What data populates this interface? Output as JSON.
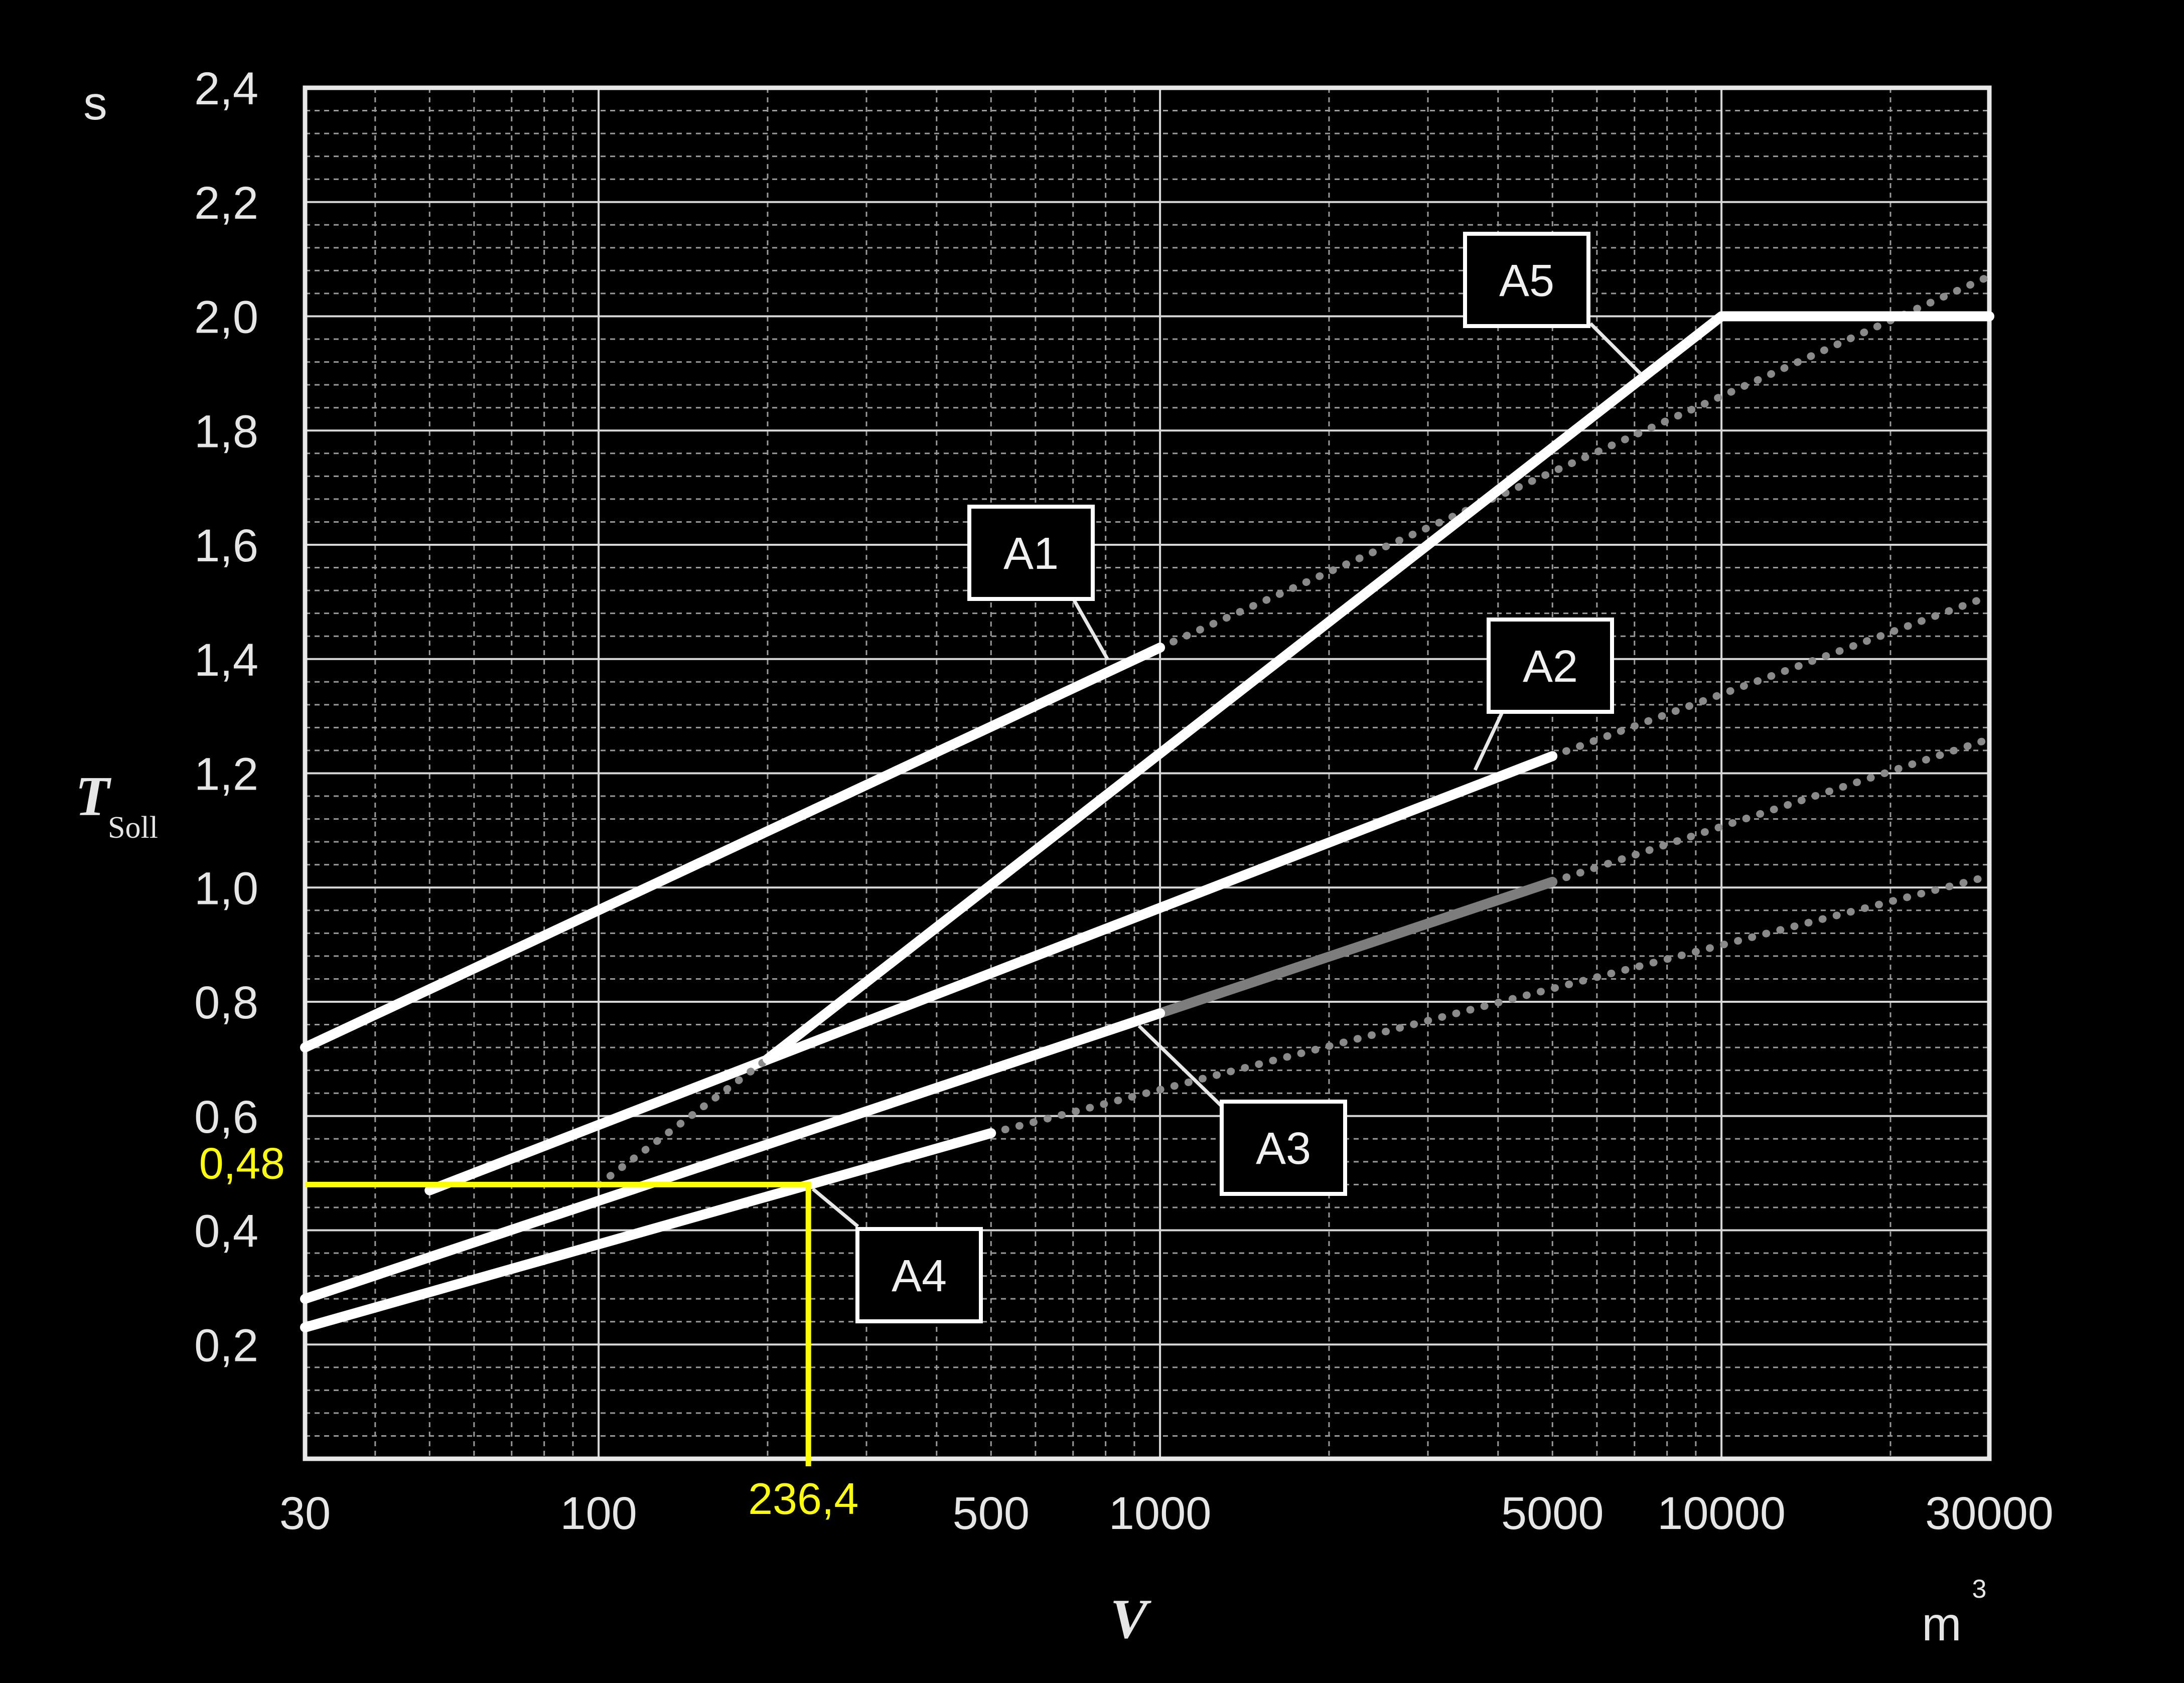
{
  "chart_data": {
    "type": "line",
    "x_scale": "log",
    "xlim": [
      30,
      30000
    ],
    "ylim": [
      0,
      2.4
    ],
    "x_ticks": [
      {
        "value": 30,
        "label": "30"
      },
      {
        "value": 100,
        "label": "100"
      },
      {
        "value": 500,
        "label": "500"
      },
      {
        "value": 1000,
        "label": "1000"
      },
      {
        "value": 5000,
        "label": "5000"
      },
      {
        "value": 10000,
        "label": "10000"
      },
      {
        "value": 30000,
        "label": "30000"
      }
    ],
    "y_ticks": [
      {
        "value": 0.2,
        "label": "0,2"
      },
      {
        "value": 0.4,
        "label": "0,4"
      },
      {
        "value": 0.6,
        "label": "0,6"
      },
      {
        "value": 0.8,
        "label": "0,8"
      },
      {
        "value": 1.0,
        "label": "1,0"
      },
      {
        "value": 1.2,
        "label": "1,2"
      },
      {
        "value": 1.4,
        "label": "1,4"
      },
      {
        "value": 1.6,
        "label": "1,6"
      },
      {
        "value": 1.8,
        "label": "1,8"
      },
      {
        "value": 2.0,
        "label": "2,0"
      },
      {
        "value": 2.2,
        "label": "2,2"
      },
      {
        "value": 2.4,
        "label": "2,4"
      }
    ],
    "y_unit": "s",
    "y_label_main": "T",
    "y_label_sub": "Soll",
    "x_label": "V",
    "x_unit_base": "m",
    "x_unit_sup": "3",
    "grid": true,
    "series": [
      {
        "name": "A1",
        "solid": [
          [
            30,
            0.72
          ],
          [
            1000,
            1.42
          ]
        ],
        "dotted": [
          [
            1000,
            1.42
          ],
          [
            30000,
            2.07
          ]
        ]
      },
      {
        "name": "A2",
        "solid": [
          [
            50,
            0.47
          ],
          [
            5000,
            1.23
          ]
        ],
        "dotted": [
          [
            5000,
            1.23
          ],
          [
            30000,
            1.51
          ]
        ]
      },
      {
        "name": "A3",
        "solid": [
          [
            30,
            0.28
          ],
          [
            1000,
            0.78
          ]
        ],
        "grey": [
          [
            1000,
            0.78
          ],
          [
            5000,
            1.01
          ]
        ],
        "dotted": [
          [
            5000,
            1.01
          ],
          [
            30000,
            1.26
          ]
        ]
      },
      {
        "name": "A4",
        "solid": [
          [
            30,
            0.23
          ],
          [
            500,
            0.57
          ]
        ],
        "dotted": [
          [
            500,
            0.57
          ],
          [
            30000,
            1.02
          ]
        ]
      },
      {
        "name": "A5",
        "solid": [
          [
            200,
            0.7
          ],
          [
            10000,
            2.0
          ],
          [
            30000,
            2.0
          ]
        ],
        "dotted": [
          [
            100,
            0.48
          ],
          [
            200,
            0.7
          ]
        ]
      }
    ],
    "highlight": {
      "x": 236.4,
      "y": 0.48,
      "x_label": "236,4",
      "y_label": "0,48",
      "color": "#ffff00"
    }
  },
  "callouts": [
    {
      "text": "A1",
      "series": "A1",
      "anchor": [
        1000,
        1.42
      ]
    },
    {
      "text": "A2",
      "series": "A2",
      "anchor": [
        5000,
        1.23
      ]
    },
    {
      "text": "A3",
      "series": "A3",
      "anchor": [
        1000,
        0.78
      ]
    },
    {
      "text": "A4",
      "series": "A4",
      "anchor": [
        236.4,
        0.48
      ]
    },
    {
      "text": "A5",
      "series": "A5",
      "anchor": [
        10000,
        2.0
      ]
    }
  ]
}
